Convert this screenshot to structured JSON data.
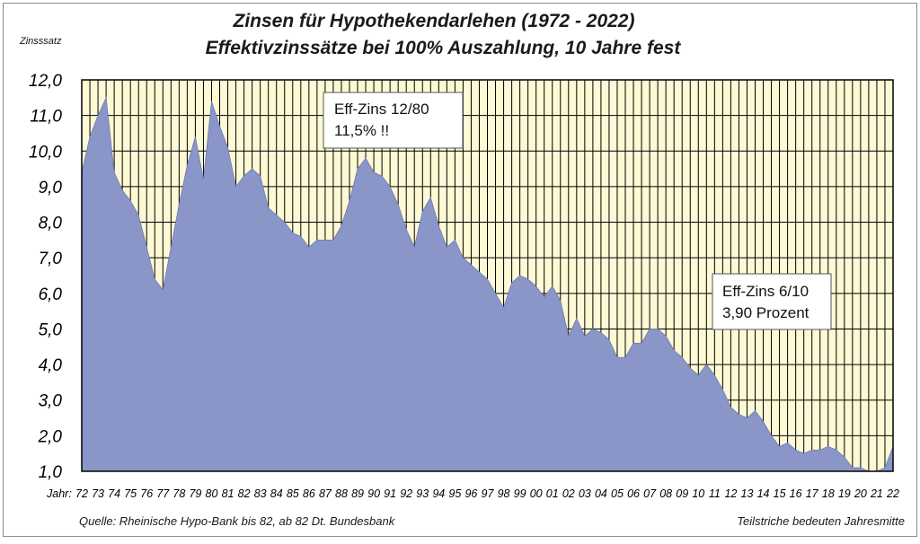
{
  "chart_data": {
    "type": "area",
    "title": "Zinsen für Hypothekendarlehen (1972 - 2022)",
    "subtitle": "Effektivzinssätze bei 100% Auszahlung, 10 Jahre fest",
    "ylabel": "Zinsssatz",
    "xlabel": "Jahr:",
    "ylim": [
      1.0,
      12.0
    ],
    "xlim": [
      1972,
      2022
    ],
    "grid": true,
    "y_ticks": [
      "1,0",
      "2,0",
      "3,0",
      "4,0",
      "5,0",
      "6,0",
      "7,0",
      "8,0",
      "9,0",
      "10,0",
      "11,0",
      "12,0"
    ],
    "x_ticks": [
      "72",
      "73",
      "74",
      "75",
      "76",
      "77",
      "78",
      "79",
      "80",
      "81",
      "82",
      "83",
      "84",
      "85",
      "86",
      "87",
      "88",
      "89",
      "90",
      "91",
      "92",
      "93",
      "94",
      "95",
      "96",
      "97",
      "98",
      "99",
      "00",
      "01",
      "02",
      "03",
      "04",
      "05",
      "06",
      "07",
      "08",
      "09",
      "10",
      "11",
      "12",
      "13",
      "14",
      "15",
      "16",
      "17",
      "18",
      "19",
      "20",
      "21",
      "22"
    ],
    "source_note": "Quelle: Rheinische Hypo-Bank bis 82, ab 82 Dt. Bundesbank",
    "tick_note": "Teilstriche bedeuten Jahresmitte",
    "colors": {
      "plot_bg": "#fcf9d4",
      "area": "#8a95c8",
      "grid": "#000000"
    },
    "x": [
      1972.0,
      1972.5,
      1973.0,
      1973.5,
      1974.0,
      1974.5,
      1975.0,
      1975.5,
      1976.0,
      1976.5,
      1977.0,
      1977.5,
      1978.0,
      1978.5,
      1979.0,
      1979.5,
      1980.0,
      1980.5,
      1981.0,
      1981.5,
      1982.0,
      1982.5,
      1983.0,
      1983.5,
      1984.0,
      1984.5,
      1985.0,
      1985.5,
      1986.0,
      1986.5,
      1987.0,
      1987.5,
      1988.0,
      1988.5,
      1989.0,
      1989.5,
      1990.0,
      1990.5,
      1991.0,
      1991.5,
      1992.0,
      1992.5,
      1993.0,
      1993.5,
      1994.0,
      1994.5,
      1995.0,
      1995.5,
      1996.0,
      1996.5,
      1997.0,
      1997.5,
      1998.0,
      1998.5,
      1999.0,
      1999.5,
      2000.0,
      2000.5,
      2001.0,
      2001.5,
      2002.0,
      2002.5,
      2003.0,
      2003.5,
      2004.0,
      2004.5,
      2005.0,
      2005.5,
      2006.0,
      2006.5,
      2007.0,
      2007.5,
      2008.0,
      2008.5,
      2009.0,
      2009.5,
      2010.0,
      2010.5,
      2011.0,
      2011.5,
      2012.0,
      2012.5,
      2013.0,
      2013.5,
      2014.0,
      2014.5,
      2015.0,
      2015.5,
      2016.0,
      2016.5,
      2017.0,
      2017.5,
      2018.0,
      2018.5,
      2019.0,
      2019.5,
      2020.0,
      2020.5,
      2021.0,
      2021.5,
      2022.0
    ],
    "values": [
      9.4,
      10.4,
      11.0,
      11.5,
      9.4,
      8.9,
      8.6,
      8.2,
      7.3,
      6.4,
      6.1,
      7.3,
      8.5,
      9.6,
      10.4,
      9.2,
      11.4,
      10.7,
      10.1,
      9.0,
      9.3,
      9.5,
      9.3,
      8.4,
      8.2,
      8.0,
      7.7,
      7.6,
      7.3,
      7.5,
      7.5,
      7.5,
      7.9,
      8.6,
      9.5,
      9.8,
      9.4,
      9.3,
      9.0,
      8.5,
      7.8,
      7.3,
      8.3,
      8.7,
      7.9,
      7.3,
      7.5,
      7.0,
      6.8,
      6.6,
      6.4,
      6.0,
      5.6,
      6.3,
      6.5,
      6.4,
      6.2,
      5.9,
      6.2,
      5.8,
      4.8,
      5.3,
      4.8,
      5.0,
      4.9,
      4.7,
      4.2,
      4.2,
      4.6,
      4.6,
      5.0,
      5.0,
      4.8,
      4.4,
      4.2,
      3.9,
      3.7,
      4.0,
      3.7,
      3.3,
      2.8,
      2.6,
      2.5,
      2.7,
      2.4,
      2.0,
      1.7,
      1.8,
      1.6,
      1.5,
      1.6,
      1.6,
      1.7,
      1.6,
      1.4,
      1.1,
      1.1,
      1.0,
      1.0,
      1.1,
      1.7
    ],
    "annotations": [
      {
        "lines": [
          "Eff-Zins 12/80",
          "11,5% !!"
        ]
      },
      {
        "lines": [
          "Eff-Zins 6/10",
          "3,90 Prozent"
        ]
      }
    ]
  }
}
